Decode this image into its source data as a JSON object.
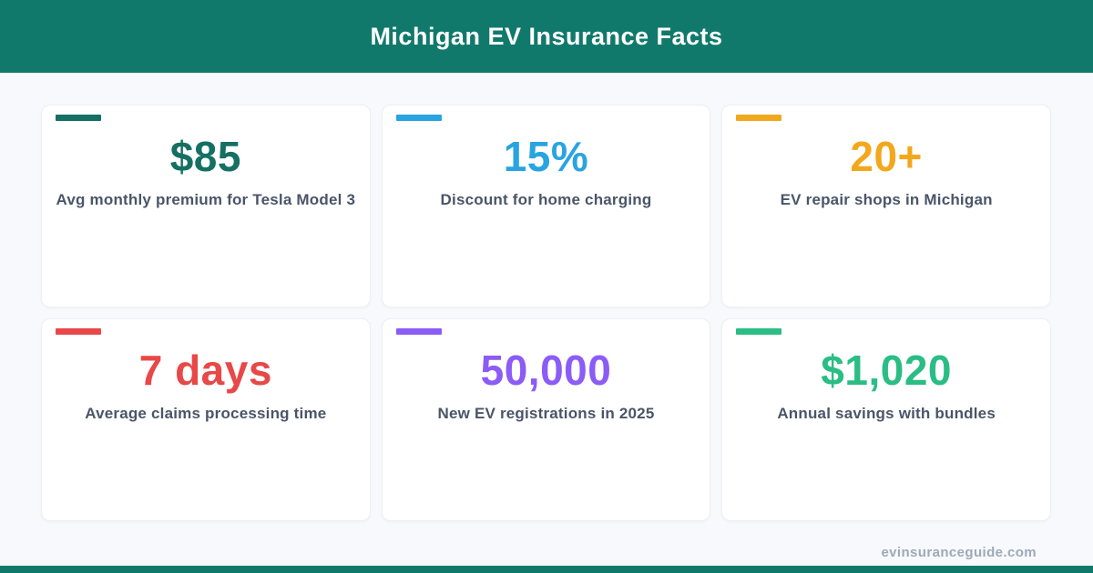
{
  "header": {
    "title": "Michigan EV Insurance Facts",
    "background_color": "#11796B",
    "text_color": "#FFFFFF"
  },
  "cards": [
    {
      "value": "$85",
      "label": "Avg monthly premium for Tesla Model 3",
      "accent_color": "#157063"
    },
    {
      "value": "15%",
      "label": "Discount for home charging",
      "accent_color": "#29A4E0"
    },
    {
      "value": "20+",
      "label": "EV repair shops in Michigan",
      "accent_color": "#F2A81D"
    },
    {
      "value": "7 days",
      "label": "Average claims processing time",
      "accent_color": "#E84848"
    },
    {
      "value": "50,000",
      "label": "New EV registrations in 2025",
      "accent_color": "#8B5CF6"
    },
    {
      "value": "$1,020",
      "label": "Annual savings with bundles",
      "accent_color": "#2ABD84"
    }
  ],
  "footer": {
    "website": "evinsuranceguide.com",
    "bar_color": "#11796B",
    "text_color": "#9FA9B6"
  },
  "colors": {
    "page_background": "#F7F9FC",
    "card_background": "#FFFFFF",
    "label_text": "#4A5568"
  }
}
